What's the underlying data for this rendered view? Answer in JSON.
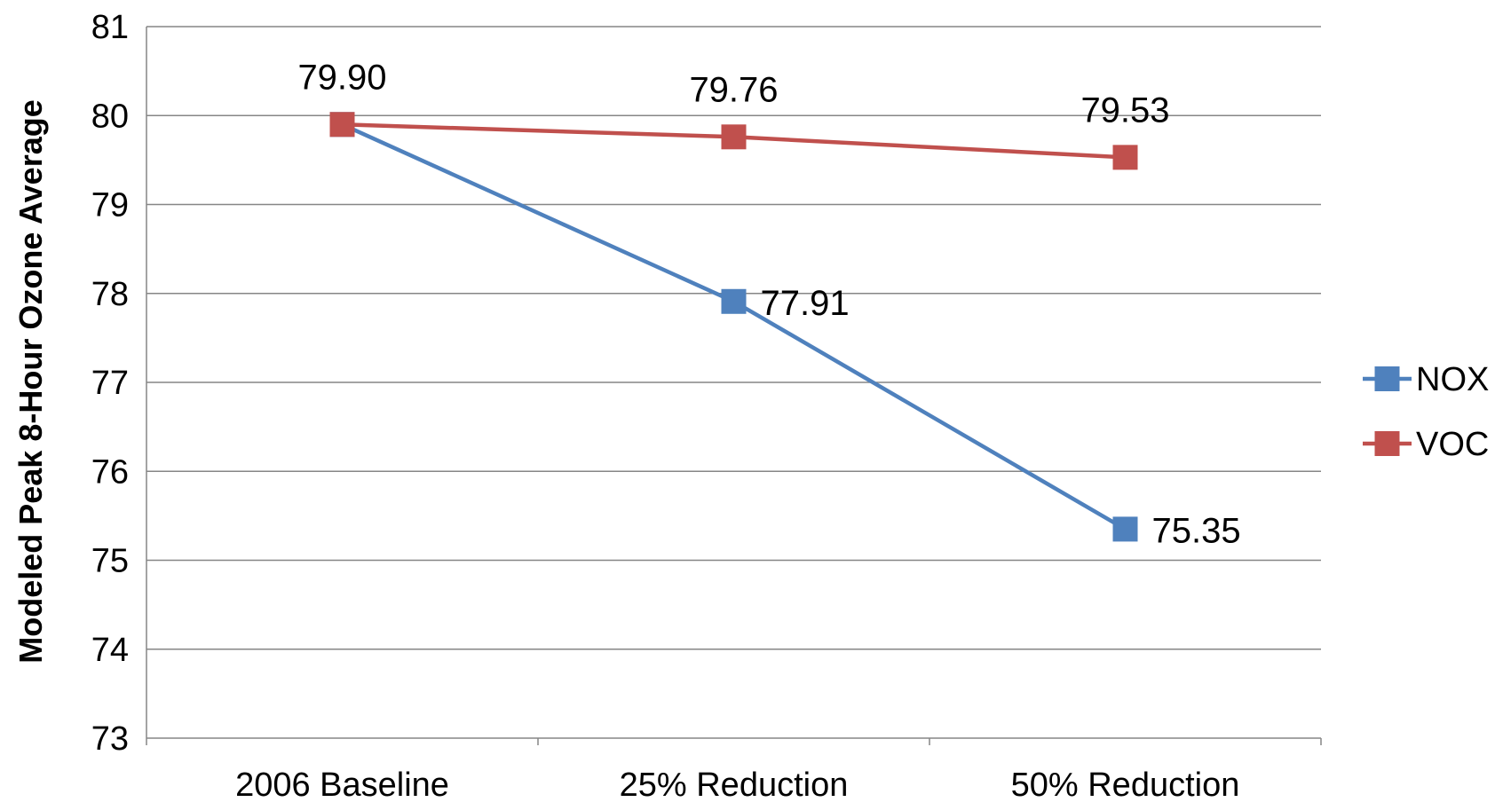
{
  "chart_data": {
    "type": "line",
    "title": "",
    "xlabel": "",
    "ylabel": "Modeled Peak 8-Hour Ozone Average",
    "categories": [
      "2006 Baseline",
      "25% Reduction",
      "50% Reduction"
    ],
    "ylim": [
      73,
      81
    ],
    "yticks": [
      73,
      74,
      75,
      76,
      77,
      78,
      79,
      80,
      81
    ],
    "grid": true,
    "legend_position": "right",
    "series": [
      {
        "name": "NOX",
        "values": [
          79.9,
          77.91,
          75.35
        ],
        "labels": [
          "",
          "77.91",
          "75.35"
        ],
        "color": "#4F81BD",
        "marker": "square"
      },
      {
        "name": "VOC",
        "values": [
          79.9,
          79.76,
          79.53
        ],
        "labels": [
          "79.90",
          "79.76",
          "79.53"
        ],
        "color": "#C0504D",
        "marker": "square"
      }
    ]
  }
}
